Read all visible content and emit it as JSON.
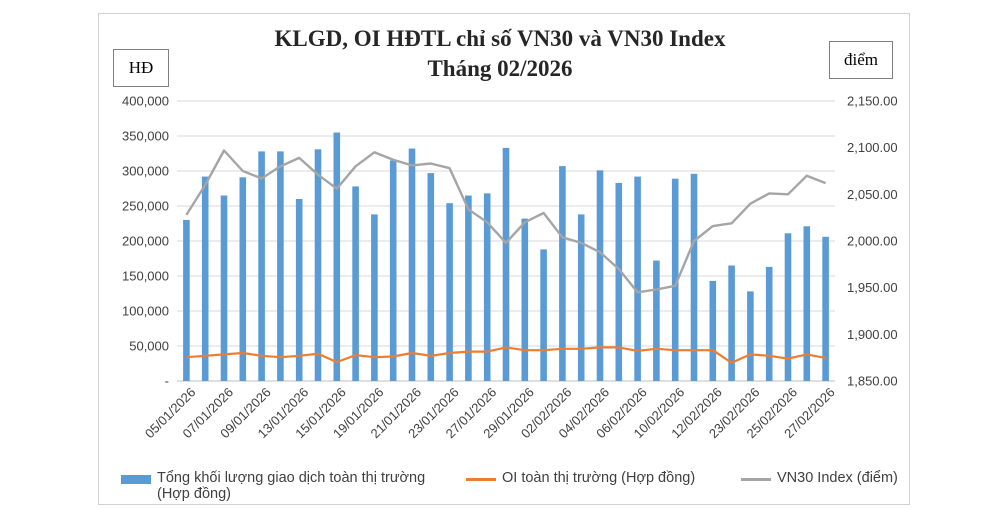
{
  "title_line1": "KLGD, OI HĐTL chỉ số VN30 và VN30 Index",
  "title_line2": "Tháng 02/2026",
  "left_unit": "HĐ",
  "right_unit": "điểm",
  "colors": {
    "bar": "#5B9BD5",
    "oi": "#ED7D31",
    "index": "#A5A5A5",
    "grid": "#D9D9D9"
  },
  "legend": {
    "bar_label_line1": "Tổng khối lượng giao dịch toàn thị trường",
    "bar_label_line2": "(Hợp đồng)",
    "oi_label": "OI toàn thị trường (Hợp đồng)",
    "index_label": "VN30 Index (điểm)"
  },
  "chart_data": {
    "type": "bar",
    "title": "KLGD, OI HĐTL chỉ số VN30 và VN30 Index Tháng 02/2026",
    "y_left": {
      "min": 0,
      "max": 400000,
      "ticks": [
        "-",
        "50,000",
        "100,000",
        "150,000",
        "200,000",
        "250,000",
        "300,000",
        "350,000",
        "400,000"
      ]
    },
    "y_right": {
      "min": 1850,
      "max": 2150,
      "ticks": [
        "1,850.00",
        "1,900.00",
        "1,950.00",
        "2,000.00",
        "2,050.00",
        "2,100.00",
        "2,150.00"
      ]
    },
    "grid": true,
    "legend_position": "bottom",
    "x_tick_labels": [
      "05/01/2026",
      "07/01/2026",
      "09/01/2026",
      "13/01/2026",
      "15/01/2026",
      "19/01/2026",
      "21/01/2026",
      "23/01/2026",
      "27/01/2026",
      "29/01/2026",
      "02/02/2026",
      "04/02/2026",
      "06/02/2026",
      "10/02/2026",
      "12/02/2026",
      "23/02/2026",
      "25/02/2026",
      "27/02/2026"
    ],
    "series": [
      {
        "name": "Tổng khối lượng giao dịch toàn thị trường (Hợp đồng)",
        "type": "bar",
        "axis": "left",
        "values": [
          230000,
          292000,
          265000,
          291000,
          328000,
          328000,
          260000,
          331000,
          355000,
          278000,
          238000,
          315000,
          332000,
          297000,
          254000,
          265000,
          268000,
          333000,
          232000,
          188000,
          307000,
          238000,
          301000,
          283000,
          292000,
          172000,
          289000,
          296000,
          143000,
          165000,
          128000,
          163000,
          211000,
          221000,
          206000
        ]
      },
      {
        "name": "OI toàn thị trường (Hợp đồng)",
        "type": "line",
        "axis": "left",
        "values": [
          34000,
          36000,
          38000,
          40000,
          36000,
          34000,
          36000,
          39000,
          27000,
          37000,
          34000,
          35000,
          40000,
          36000,
          40000,
          42000,
          42000,
          48000,
          44000,
          44000,
          46000,
          46000,
          48000,
          48000,
          43000,
          46000,
          44000,
          44000,
          44000,
          26000,
          38000,
          36000,
          32000,
          38000,
          33000
        ]
      },
      {
        "name": "VN30 Index (điểm)",
        "type": "line",
        "axis": "right",
        "values": [
          2028,
          2060,
          2097,
          2075,
          2067,
          2080,
          2089,
          2071,
          2056,
          2080,
          2095,
          2087,
          2081,
          2083,
          2078,
          2034,
          2020,
          1998,
          2020,
          2030,
          2004,
          1998,
          1988,
          1970,
          1945,
          1948,
          1952,
          2000,
          2016,
          2019,
          2040,
          2051,
          2050,
          2070,
          2062
        ]
      }
    ]
  }
}
